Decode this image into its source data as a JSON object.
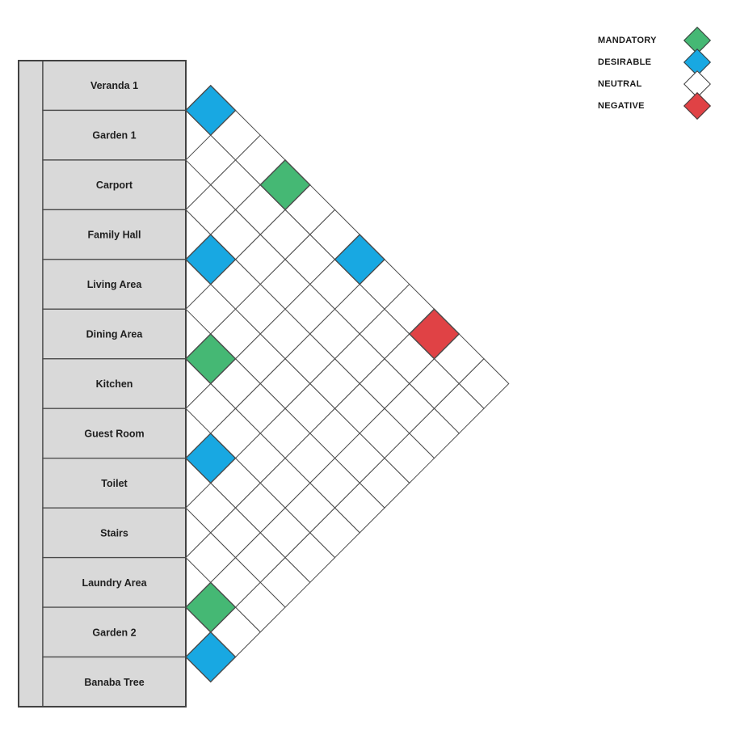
{
  "diagram": {
    "type": "room-relationship-adjacency-matrix",
    "rooms": [
      "Veranda 1",
      "Garden 1",
      "Carport",
      "Family Hall",
      "Living Area",
      "Dining Area",
      "Kitchen",
      "Guest Room",
      "Toilet",
      "Stairs",
      "Laundry Area",
      "Garden 2",
      "Banaba Tree"
    ],
    "relationships": [
      {
        "a": "Veranda 1",
        "b": "Garden 1",
        "type": "DESIRABLE"
      },
      {
        "a": "Veranda 1",
        "b": "Living Area",
        "type": "MANDATORY"
      },
      {
        "a": "Family Hall",
        "b": "Living Area",
        "type": "DESIRABLE"
      },
      {
        "a": "Veranda 1",
        "b": "Guest Room",
        "type": "DESIRABLE"
      },
      {
        "a": "Veranda 1",
        "b": "Laundry Area",
        "type": "NEGATIVE"
      },
      {
        "a": "Dining Area",
        "b": "Kitchen",
        "type": "MANDATORY"
      },
      {
        "a": "Guest Room",
        "b": "Toilet",
        "type": "DESIRABLE"
      },
      {
        "a": "Laundry Area",
        "b": "Garden 2",
        "type": "MANDATORY"
      },
      {
        "a": "Garden 2",
        "b": "Banaba Tree",
        "type": "DESIRABLE"
      }
    ],
    "legend": [
      {
        "label": "MANDATORY",
        "color": "#45B874"
      },
      {
        "label": "DESIRABLE",
        "color": "#18A8E2"
      },
      {
        "label": "NEUTRAL",
        "color": "#FFFFFF"
      },
      {
        "label": "NEGATIVE",
        "color": "#E04245"
      }
    ],
    "colors": {
      "row_fill": "#D9D9D9",
      "line": "#4A4A4A",
      "outer_border": "#424242",
      "neutral_cell": "#FFFFFF",
      "text": "#1F1F1F"
    }
  }
}
